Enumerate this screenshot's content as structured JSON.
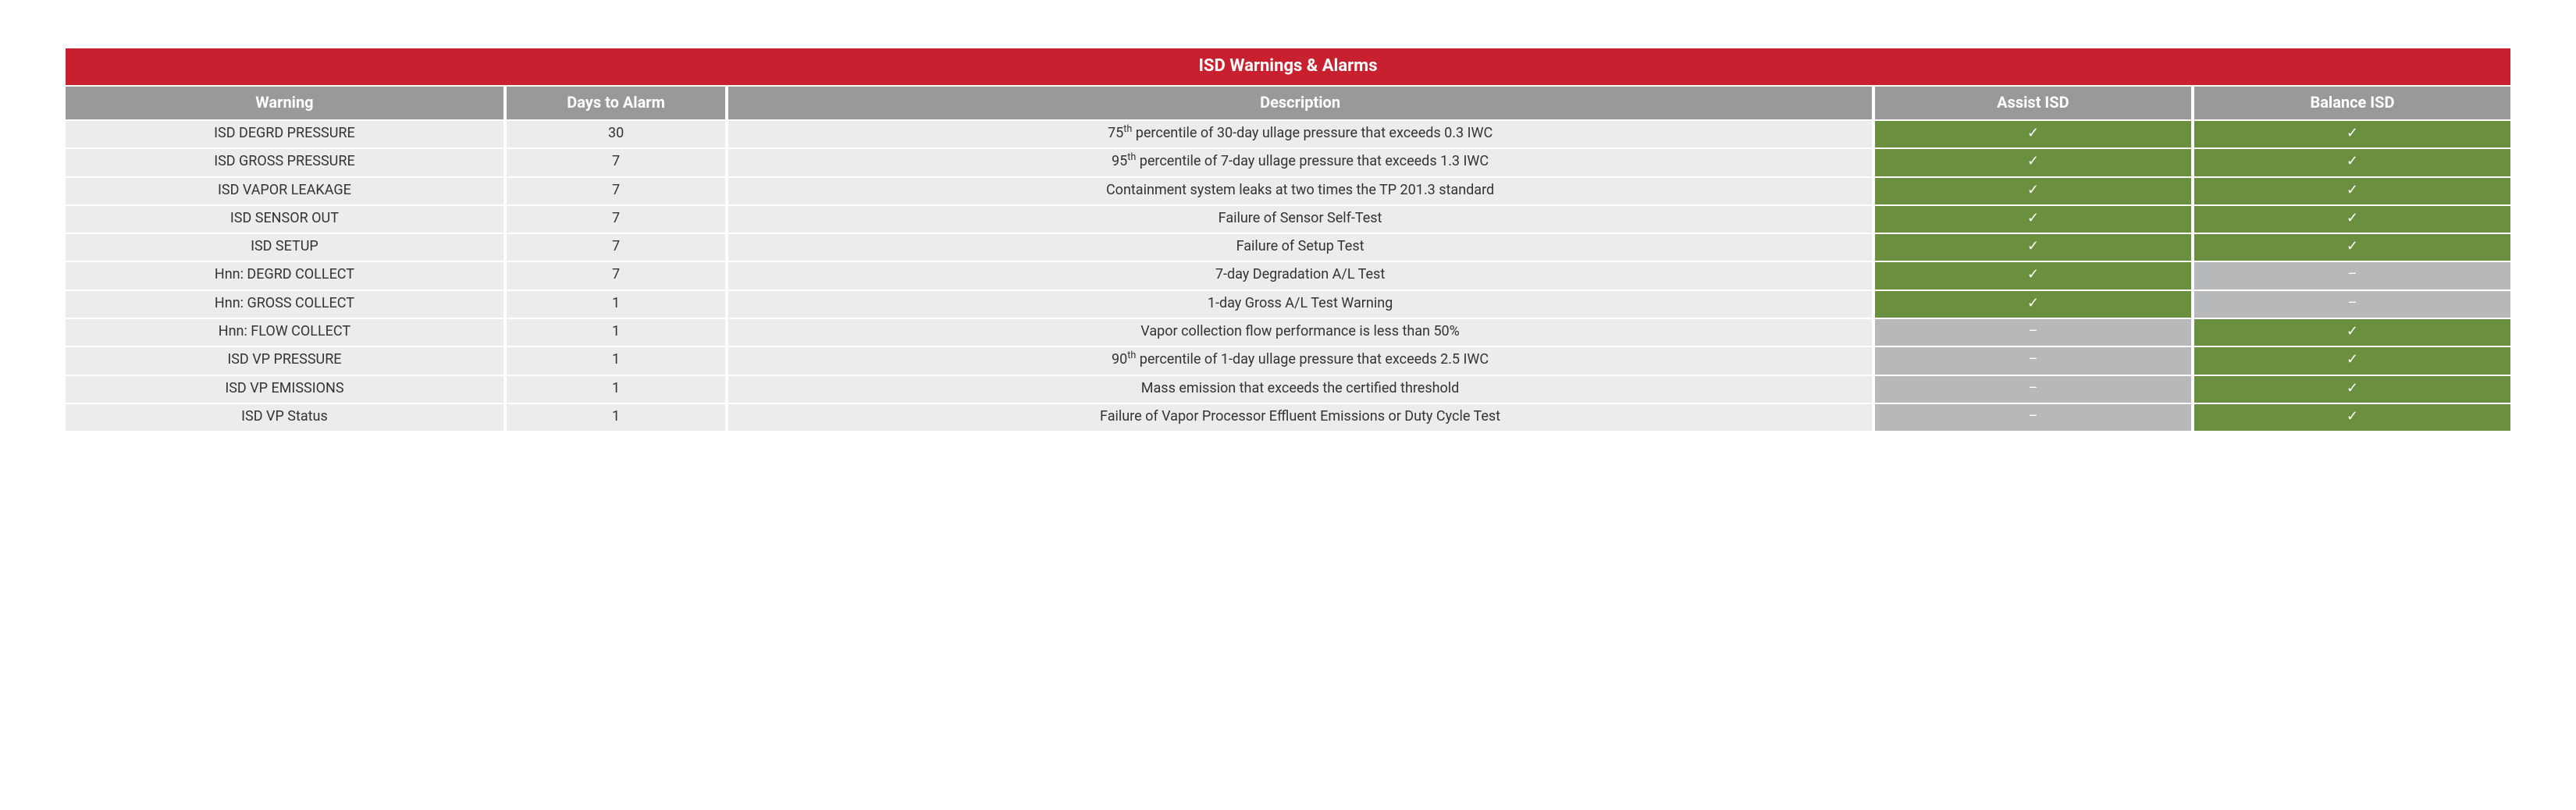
{
  "colors": {
    "title_bg": "#c8202f",
    "header_bg": "#98999b",
    "row_bg": "#ebecec",
    "status_yes_bg": "#6a8f3f",
    "status_no_bg": "#b7b8ba",
    "text_light": "#ffffff",
    "text_dark": "#333333"
  },
  "table": {
    "title": "ISD Warnings & Alarms",
    "columns": [
      {
        "key": "warning",
        "label": "Warning",
        "width": "18%"
      },
      {
        "key": "days",
        "label": "Days to Alarm",
        "width": "9%"
      },
      {
        "key": "description",
        "label": "Description",
        "width": "47%"
      },
      {
        "key": "assist",
        "label": "Assist ISD",
        "width": "13%",
        "is_status": true
      },
      {
        "key": "balance",
        "label": "Balance ISD",
        "width": "13%",
        "is_status": true
      }
    ],
    "status_glyphs": {
      "yes": "✓",
      "no": "–"
    },
    "rows": [
      {
        "warning": "ISD DEGRD PRESSURE",
        "days": "30",
        "description": "75<sup>th</sup> percentile of 30-day ullage pressure that exceeds 0.3 IWC",
        "assist": true,
        "balance": true
      },
      {
        "warning": "ISD GROSS PRESSURE",
        "days": "7",
        "description": "95<sup>th</sup> percentile of 7-day ullage pressure that exceeds 1.3 IWC",
        "assist": true,
        "balance": true
      },
      {
        "warning": "ISD VAPOR LEAKAGE",
        "days": "7",
        "description": "Containment system leaks at two times the TP 201.3 standard",
        "assist": true,
        "balance": true
      },
      {
        "warning": "ISD SENSOR OUT",
        "days": "7",
        "description": "Failure of Sensor Self-Test",
        "assist": true,
        "balance": true
      },
      {
        "warning": "ISD SETUP",
        "days": "7",
        "description": "Failure of Setup Test",
        "assist": true,
        "balance": true
      },
      {
        "warning": "Hnn: DEGRD COLLECT",
        "days": "7",
        "description": "7-day Degradation A/L Test",
        "assist": true,
        "balance": false
      },
      {
        "warning": "Hnn: GROSS COLLECT",
        "days": "1",
        "description": "1-day Gross A/L Test Warning",
        "assist": true,
        "balance": false
      },
      {
        "warning": "Hnn: FLOW COLLECT",
        "days": "1",
        "description": "Vapor collection flow performance is less than 50%",
        "assist": false,
        "balance": true
      },
      {
        "warning": "ISD VP PRESSURE",
        "days": "1",
        "description": "90<sup>th</sup> percentile of 1-day ullage pressure that exceeds 2.5 IWC",
        "assist": false,
        "balance": true
      },
      {
        "warning": "ISD VP EMISSIONS",
        "days": "1",
        "description": "Mass emission that exceeds the certified threshold",
        "assist": false,
        "balance": true
      },
      {
        "warning": "ISD VP Status",
        "days": "1",
        "description": "Failure of Vapor Processor Effluent Emissions or Duty Cycle Test",
        "assist": false,
        "balance": true
      }
    ]
  }
}
